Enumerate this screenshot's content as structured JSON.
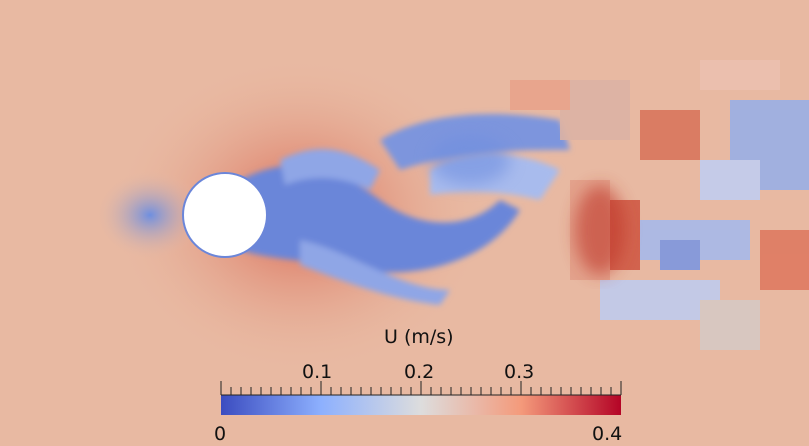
{
  "colorbar": {
    "title": "U (m/s)",
    "range": [
      0,
      0.4
    ],
    "end_labels": [
      "0",
      "0.4"
    ],
    "tick_labels": [
      "0.1",
      "0.2",
      "0.3"
    ],
    "colormap": [
      "#3b4cc0",
      "#b8d0f9",
      "#dddddd",
      "#f6bda2",
      "#b40426"
    ]
  },
  "scene": {
    "description_free": true,
    "background_color": "#e8b9a2",
    "obstacle_color": "#ffffff"
  }
}
